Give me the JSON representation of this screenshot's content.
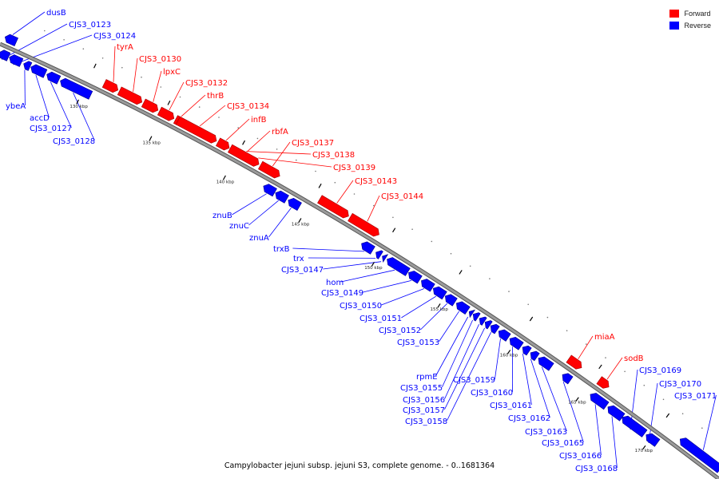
{
  "title": "Campylobacter jejuni subsp. jejuni S3, complete genome. - 0..1681364",
  "legend": [
    {
      "label": "Forward",
      "color": "#ff0000"
    },
    {
      "label": "Reverse",
      "color": "#0000ff"
    }
  ],
  "colors": {
    "forward": "#ff0000",
    "reverse": "#0000ff",
    "backbone": "#9a9a9a",
    "label_line_forward": "#ff0000",
    "label_line_reverse": "#0000ff"
  },
  "ticks": [
    "130 kbp",
    "135 kbp",
    "140 kbp",
    "145 kbp",
    "150 kbp",
    "155 kbp",
    "160 kbp",
    "165 kbp",
    "170 kbp"
  ],
  "genes": [
    {
      "label": "dusB",
      "strand": "reverse"
    },
    {
      "label": "CJS3_0123",
      "strand": "reverse"
    },
    {
      "label": "CJS3_0124",
      "strand": "reverse"
    },
    {
      "label": "ybeA",
      "strand": "reverse"
    },
    {
      "label": "accD",
      "strand": "reverse"
    },
    {
      "label": "CJS3_0127",
      "strand": "reverse"
    },
    {
      "label": "CJS3_0128",
      "strand": "reverse"
    },
    {
      "label": "tyrA",
      "strand": "forward"
    },
    {
      "label": "CJS3_0130",
      "strand": "forward"
    },
    {
      "label": "lpxC",
      "strand": "forward"
    },
    {
      "label": "CJS3_0132",
      "strand": "forward"
    },
    {
      "label": "thrB",
      "strand": "forward"
    },
    {
      "label": "CJS3_0134",
      "strand": "forward"
    },
    {
      "label": "infB",
      "strand": "forward"
    },
    {
      "label": "rbfA",
      "strand": "forward"
    },
    {
      "label": "CJS3_0137",
      "strand": "forward"
    },
    {
      "label": "CJS3_0138",
      "strand": "forward"
    },
    {
      "label": "CJS3_0139",
      "strand": "forward"
    },
    {
      "label": "CJS3_0143",
      "strand": "forward"
    },
    {
      "label": "CJS3_0144",
      "strand": "forward"
    },
    {
      "label": "znuB",
      "strand": "reverse"
    },
    {
      "label": "znuC",
      "strand": "reverse"
    },
    {
      "label": "znuA",
      "strand": "reverse"
    },
    {
      "label": "trxB",
      "strand": "reverse"
    },
    {
      "label": "trx",
      "strand": "reverse"
    },
    {
      "label": "CJS3_0147",
      "strand": "reverse"
    },
    {
      "label": "hom",
      "strand": "reverse"
    },
    {
      "label": "CJS3_0149",
      "strand": "reverse"
    },
    {
      "label": "CJS3_0150",
      "strand": "reverse"
    },
    {
      "label": "CJS3_0151",
      "strand": "reverse"
    },
    {
      "label": "CJS3_0152",
      "strand": "reverse"
    },
    {
      "label": "CJS3_0153",
      "strand": "reverse"
    },
    {
      "label": "rpmE",
      "strand": "reverse"
    },
    {
      "label": "CJS3_0155",
      "strand": "reverse"
    },
    {
      "label": "CJS3_0156",
      "strand": "reverse"
    },
    {
      "label": "CJS3_0157",
      "strand": "reverse"
    },
    {
      "label": "CJS3_0158",
      "strand": "reverse"
    },
    {
      "label": "CJS3_0159",
      "strand": "reverse"
    },
    {
      "label": "CJS3_0160",
      "strand": "reverse"
    },
    {
      "label": "CJS3_0161",
      "strand": "reverse"
    },
    {
      "label": "CJS3_0162",
      "strand": "reverse"
    },
    {
      "label": "CJS3_0163",
      "strand": "reverse"
    },
    {
      "label": "miaA",
      "strand": "forward"
    },
    {
      "label": "sodB",
      "strand": "forward"
    },
    {
      "label": "CJS3_0165",
      "strand": "reverse"
    },
    {
      "label": "CJS3_0166",
      "strand": "reverse"
    },
    {
      "label": "CJS3_0168",
      "strand": "reverse"
    },
    {
      "label": "CJS3_0169",
      "strand": "reverse"
    },
    {
      "label": "CJS3_0170",
      "strand": "reverse"
    },
    {
      "label": "CJS3_0171",
      "strand": "reverse"
    }
  ]
}
